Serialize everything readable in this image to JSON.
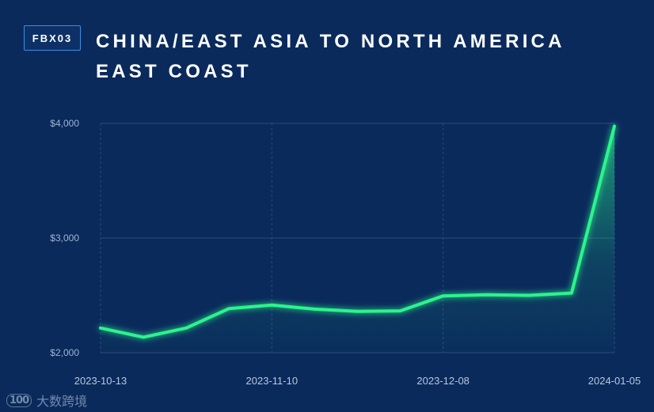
{
  "badge": "FBX03",
  "title": "CHINA/EAST ASIA TO NORTH AMERICA EAST COAST",
  "watermark": {
    "logo": "100",
    "text": "大数跨境"
  },
  "colors": {
    "background": "#0a2a5c",
    "line": "#2af58c",
    "grid": "#2c4a7c",
    "badge_border": "#3b8fe0"
  },
  "chart_data": {
    "type": "area",
    "title": "CHINA/EAST ASIA TO NORTH AMERICA EAST COAST",
    "xlabel": "",
    "ylabel": "",
    "x": [
      "2023-10-13",
      "2023-10-20",
      "2023-10-27",
      "2023-11-03",
      "2023-11-10",
      "2023-11-17",
      "2023-11-24",
      "2023-12-01",
      "2023-12-08",
      "2023-12-15",
      "2023-12-22",
      "2023-12-29",
      "2024-01-05"
    ],
    "x_tick_labels": [
      "2023-10-13",
      "2023-11-10",
      "2023-12-08",
      "2024-01-05"
    ],
    "y_tick_labels": [
      "$2,000",
      "$3,000",
      "$4,000"
    ],
    "y_ticks": [
      2000,
      3000,
      4000
    ],
    "ylim": [
      2000,
      4000
    ],
    "series": [
      {
        "values": [
          2215,
          2135,
          2215,
          2385,
          2415,
          2380,
          2360,
          2365,
          2495,
          2505,
          2500,
          2520,
          3975
        ]
      }
    ],
    "grid": true,
    "legend": "none"
  }
}
